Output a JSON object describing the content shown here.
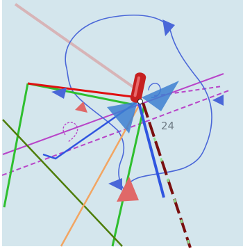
{
  "view": {
    "sea_color": "#d4e6ed"
  },
  "chart": {
    "depth_sounding": "24"
  },
  "vessel": {
    "hull_color": "#c62020",
    "cone_color": "#3d7fd0"
  },
  "colors": {
    "guard_zone": "#4a67d8",
    "heading_line": "#e01010",
    "course_line": "#7a0f0f",
    "route_green": "#2fbf2f",
    "route_olive": "#4e7d0a",
    "route_orange": "#f2a562",
    "boundary_magenta": "#b844c8",
    "bearing_pink": "#d98a8a",
    "target_blue": "#2f55e0",
    "marker_red": "#e06868"
  }
}
